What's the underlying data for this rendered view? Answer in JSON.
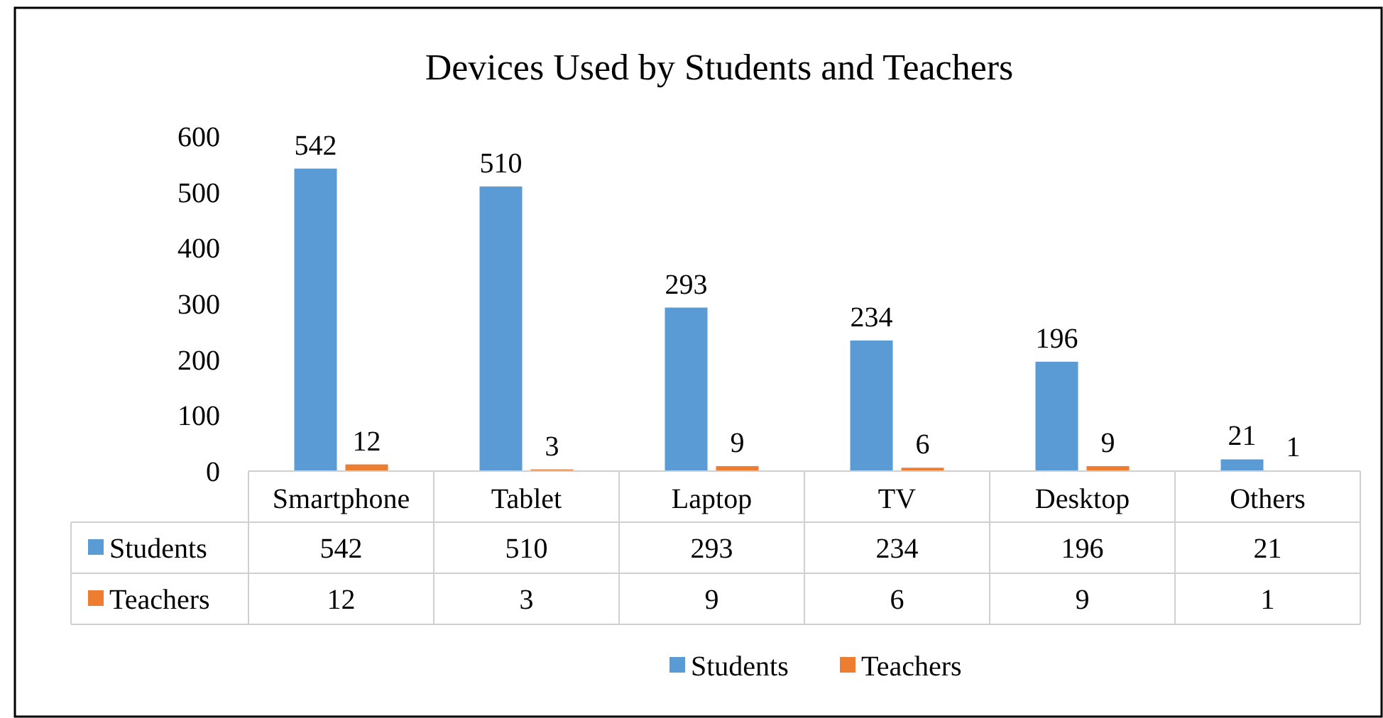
{
  "chart_data": {
    "type": "bar",
    "title": "Devices Used by Students and Teachers",
    "categories": [
      "Smartphone",
      "Tablet",
      "Laptop",
      "TV",
      "Desktop",
      "Others"
    ],
    "series": [
      {
        "name": "Students",
        "color": "#5b9bd5",
        "values": [
          542,
          510,
          293,
          234,
          196,
          21
        ]
      },
      {
        "name": "Teachers",
        "color": "#ed7d31",
        "values": [
          12,
          3,
          9,
          6,
          9,
          1
        ]
      }
    ],
    "annotations": [
      "542",
      "510",
      "293",
      "234",
      "196",
      "21",
      "12",
      "3",
      "9",
      "6",
      "9",
      "1"
    ],
    "ylim": [
      0,
      600
    ],
    "yticks": [
      0,
      100,
      200,
      300,
      400,
      500,
      600
    ],
    "grid": false,
    "data_labels": true,
    "legend": "bottom"
  }
}
